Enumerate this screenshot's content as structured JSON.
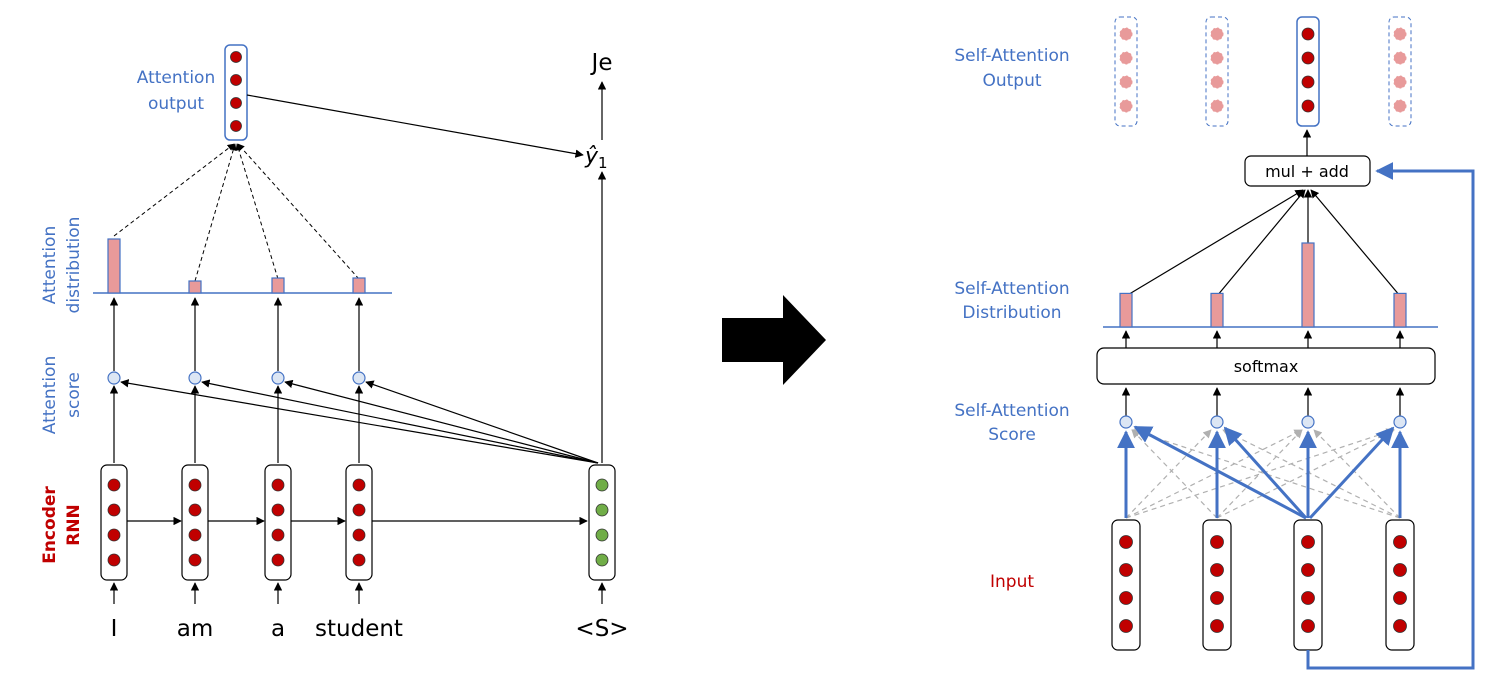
{
  "left": {
    "attention_output_label": [
      "Attention",
      "output"
    ],
    "attention_distribution_label": [
      "Attention",
      "distribution"
    ],
    "attention_score_label": [
      "Attention",
      "score"
    ],
    "encoder_rnn_label": [
      "Encoder",
      "RNN"
    ],
    "input_words": [
      "I",
      "am",
      "a",
      "student"
    ],
    "decoder_input": "<S>",
    "decoder_output": "Je",
    "prediction_symbol": "ŷ",
    "prediction_subscript": "1",
    "attention_weights": [
      0.9,
      0.2,
      0.25,
      0.25
    ]
  },
  "right": {
    "output_label": [
      "Self-Attention",
      "Output"
    ],
    "distribution_label": [
      "Self-Attention",
      "Distribution"
    ],
    "score_label": [
      "Self-Attention",
      "Score"
    ],
    "input_label": "Input",
    "mul_add_label": "mul + add",
    "softmax_label": "softmax",
    "attention_weights": [
      0.4,
      0.4,
      1.0,
      0.4
    ]
  },
  "colors": {
    "blue": "#4472c4",
    "red": "#c00000",
    "neuron_red": "#c00000",
    "neuron_green": "#70ad47",
    "bar_fill": "#e89a9a",
    "faded_neuron": "#e89a9a"
  }
}
